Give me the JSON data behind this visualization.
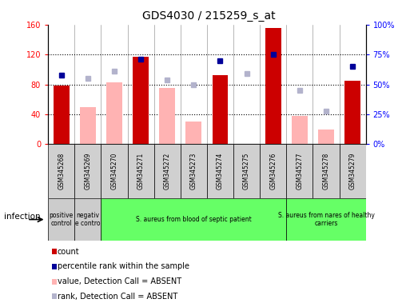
{
  "title": "GDS4030 / 215259_s_at",
  "samples": [
    "GSM345268",
    "GSM345269",
    "GSM345270",
    "GSM345271",
    "GSM345272",
    "GSM345273",
    "GSM345274",
    "GSM345275",
    "GSM345276",
    "GSM345277",
    "GSM345278",
    "GSM345279"
  ],
  "count_values": [
    78,
    null,
    null,
    117,
    null,
    null,
    92,
    null,
    155,
    null,
    null,
    85
  ],
  "count_absent": [
    null,
    50,
    83,
    null,
    75,
    30,
    null,
    null,
    null,
    38,
    20,
    null
  ],
  "rank_present": [
    58,
    null,
    null,
    71,
    null,
    null,
    70,
    null,
    75,
    null,
    null,
    65
  ],
  "rank_absent": [
    null,
    55,
    61,
    null,
    54,
    50,
    null,
    59,
    null,
    45,
    28,
    null
  ],
  "left_ylim": [
    0,
    160
  ],
  "left_yticks": [
    0,
    40,
    80,
    120,
    160
  ],
  "right_ylim": [
    0,
    100
  ],
  "right_yticks": [
    0,
    25,
    50,
    75,
    100
  ],
  "right_yticklabels": [
    "0%",
    "25%",
    "50%",
    "75%",
    "100%"
  ],
  "bar_color_present": "#cc0000",
  "bar_color_absent": "#ffb3b3",
  "dot_color_present": "#000099",
  "dot_color_absent": "#b3b3cc",
  "group_labels": [
    {
      "label": "positive\ncontrol",
      "start": 0,
      "end": 0,
      "color": "#cccccc"
    },
    {
      "label": "negativ\ne contro",
      "start": 1,
      "end": 1,
      "color": "#cccccc"
    },
    {
      "label": "S. aureus from blood of septic patient",
      "start": 2,
      "end": 8,
      "color": "#66ff66"
    },
    {
      "label": "S. aureus from nares of healthy\ncarriers",
      "start": 9,
      "end": 11,
      "color": "#66ff66"
    }
  ],
  "legend_items": [
    {
      "label": "count",
      "color": "#cc0000"
    },
    {
      "label": "percentile rank within the sample",
      "color": "#000099"
    },
    {
      "label": "value, Detection Call = ABSENT",
      "color": "#ffb3b3"
    },
    {
      "label": "rank, Detection Call = ABSENT",
      "color": "#b3b3cc"
    }
  ]
}
